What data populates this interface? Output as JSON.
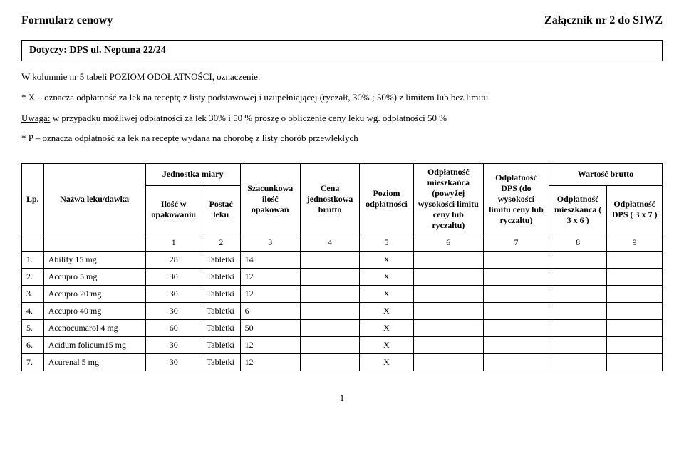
{
  "header": {
    "left": "Formularz cenowy",
    "right": "Załącznik nr 2 do SIWZ"
  },
  "box": "Dotyczy: DPS ul. Neptuna 22/24",
  "intro": {
    "p1": "W kolumnie nr 5 tabeli POZIOM ODOŁATNOŚCI, oznaczenie:",
    "p2": "* X – oznacza odpłatność za lek na receptę z listy podstawowej i uzupełniającej (ryczałt, 30% ; 50%)  z limitem lub bez limitu",
    "p3_prefix": "Uwaga:",
    "p3_rest": " w przypadku możliwej odpłatności za lek 30% i 50 % proszę o obliczenie ceny leku wg. odpłatności 50 %",
    "p4": "* P –  oznacza odpłatność za lek na receptę wydana na chorobę z listy chorób przewlekłych"
  },
  "table": {
    "headers": {
      "lp": "Lp.",
      "nazwa": "Nazwa leku/dawka",
      "jednostka_miary": "Jednostka miary",
      "ilosc_w_opakowaniu": "Ilość w opakowaniu",
      "postac_leku": "Postać leku",
      "szacunkowa": "Szacunkowa ilość opakowań",
      "cena": "Cena jednostkowa brutto",
      "poziom": "Poziom odpłatności",
      "odplatnosc_mieszkanca": "Odpłatność mieszkańca (powyżej wysokości limitu ceny lub ryczałtu)",
      "odplatnosc_dps": "Odpłatność DPS (do wysokości limitu ceny lub ryczałtu)",
      "wartosc_brutto": "Wartość brutto",
      "wb_mieszkanca": "Odpłatność mieszkańca ( 3 x 6 )",
      "wb_dps": "Odpłatność DPS ( 3 x 7 )"
    },
    "numrow": [
      "",
      "",
      "1",
      "2",
      "3",
      "4",
      "5",
      "6",
      "7",
      "8",
      "9"
    ],
    "rows": [
      {
        "lp": "1.",
        "nazwa": "Abilify 15 mg",
        "ilosc": "28",
        "postac": "Tabletki",
        "szac": "14",
        "cena": "",
        "poziom": "X",
        "om": "",
        "od": "",
        "wm": "",
        "wd": ""
      },
      {
        "lp": "2.",
        "nazwa": "Accupro 5 mg",
        "ilosc": "30",
        "postac": "Tabletki",
        "szac": "12",
        "cena": "",
        "poziom": "X",
        "om": "",
        "od": "",
        "wm": "",
        "wd": ""
      },
      {
        "lp": "3.",
        "nazwa": "Accupro 20 mg",
        "ilosc": "30",
        "postac": "Tabletki",
        "szac": "12",
        "cena": "",
        "poziom": "X",
        "om": "",
        "od": "",
        "wm": "",
        "wd": ""
      },
      {
        "lp": "4.",
        "nazwa": "Accupro 40 mg",
        "ilosc": "30",
        "postac": "Tabletki",
        "szac": "6",
        "cena": "",
        "poziom": "X",
        "om": "",
        "od": "",
        "wm": "",
        "wd": ""
      },
      {
        "lp": "5.",
        "nazwa": "Acenocumarol 4 mg",
        "ilosc": "60",
        "postac": "Tabletki",
        "szac": "50",
        "cena": "",
        "poziom": "X",
        "om": "",
        "od": "",
        "wm": "",
        "wd": ""
      },
      {
        "lp": "6.",
        "nazwa": "Acidum folicum15 mg",
        "ilosc": "30",
        "postac": "Tabletki",
        "szac": "12",
        "cena": "",
        "poziom": "X",
        "om": "",
        "od": "",
        "wm": "",
        "wd": ""
      },
      {
        "lp": "7.",
        "nazwa": "Acurenal 5 mg",
        "ilosc": "30",
        "postac": "Tabletki",
        "szac": "12",
        "cena": "",
        "poziom": "X",
        "om": "",
        "od": "",
        "wm": "",
        "wd": ""
      }
    ]
  },
  "page_number": "1"
}
